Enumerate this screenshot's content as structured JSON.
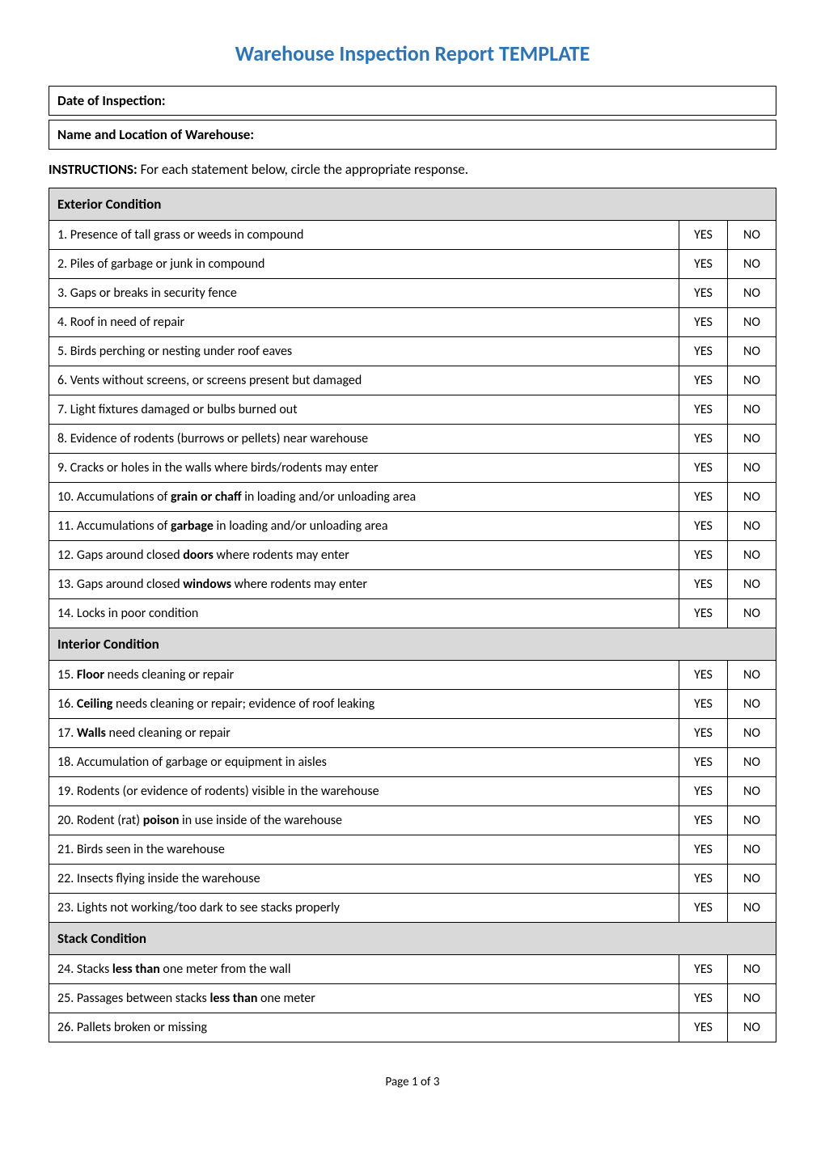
{
  "title": "Warehouse Inspection Report TEMPLATE",
  "title_color": "#2e74b5",
  "header_boxes": {
    "date": "Date of Inspection:",
    "location": "Name and Location of Warehouse:"
  },
  "instructions": {
    "label": "INSTRUCTIONS:",
    "text": " For each statement below, circle the appropriate response."
  },
  "yes_label": "YES",
  "no_label": "NO",
  "section_bg": "#d9d9d9",
  "sections": [
    {
      "heading": "Exterior Condition",
      "rows": [
        {
          "html": "1. Presence of tall grass or weeds in compound"
        },
        {
          "html": "2. Piles of garbage or junk in compound"
        },
        {
          "html": "3. Gaps or breaks in security fence"
        },
        {
          "html": "4. Roof in need of repair"
        },
        {
          "html": "5. Birds perching or nesting under roof eaves"
        },
        {
          "html": "6. Vents without screens, or screens present but damaged"
        },
        {
          "html": "7. Light fixtures damaged or bulbs burned out"
        },
        {
          "html": "8. Evidence of rodents (burrows or pellets) near warehouse"
        },
        {
          "html": "9. Cracks or holes in the walls where birds/rodents may enter"
        },
        {
          "html": "10. Accumulations of <b>grain or chaff</b> in loading and/or unloading area"
        },
        {
          "html": "11. Accumulations of <b>garbage</b> in loading and/or unloading area"
        },
        {
          "html": "12. Gaps around closed <b>doors</b> where rodents may enter"
        },
        {
          "html": "13. Gaps around closed <b>windows</b> where rodents may enter"
        },
        {
          "html": "14. Locks in poor condition"
        }
      ]
    },
    {
      "heading": "Interior Condition",
      "rows": [
        {
          "html": "15. <b>Floor</b> needs cleaning or repair"
        },
        {
          "html": "16. <b>Ceiling</b> needs cleaning or repair; evidence of roof leaking"
        },
        {
          "html": "17. <b>Walls</b> need cleaning or repair"
        },
        {
          "html": "18. Accumulation of garbage or equipment in aisles"
        },
        {
          "html": "19. Rodents (or evidence of rodents) visible in the warehouse"
        },
        {
          "html": "20. Rodent (rat) <b>poison</b> in use inside of the warehouse"
        },
        {
          "html": "21. Birds seen in the warehouse"
        },
        {
          "html": "22. Insects flying inside the warehouse"
        },
        {
          "html": "23. Lights not working/too dark to see stacks properly"
        }
      ]
    },
    {
      "heading": "Stack Condition",
      "rows": [
        {
          "html": "24. Stacks <b>less than</b> one meter from the wall"
        },
        {
          "html": "25. Passages between stacks <b>less than</b> one meter"
        },
        {
          "html": "26. Pallets broken or missing"
        }
      ]
    }
  ],
  "footer": "Page 1 of 3"
}
